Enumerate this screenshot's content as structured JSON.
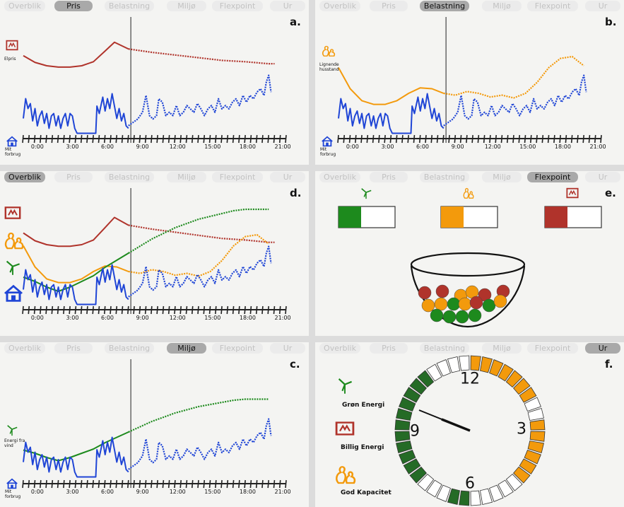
{
  "tabs": [
    "Overblik",
    "Pris",
    "Belastning",
    "Miljø",
    "Flexpoint",
    "Ur"
  ],
  "time_labels": [
    "0:00",
    "3:00",
    "6:00",
    "9:00",
    "12:00",
    "15:00",
    "18:00",
    "21:00"
  ],
  "colors": {
    "consumption": "#1f45d6",
    "price": "#b0332b",
    "load": "#f39a0c",
    "wind": "#1d8a1d",
    "active_tab": "#a9a9a9"
  },
  "panels": {
    "a": {
      "letter": "a.",
      "active_tab": "Pris",
      "price_label": "Elpris",
      "consumption_label": "Mit forbrug",
      "icons": [
        "price-tag-icon",
        "house-icon"
      ]
    },
    "b": {
      "letter": "b.",
      "active_tab": "Belastning",
      "load_label": "Lignende husstand",
      "consumption_label": "Mit forbrug",
      "icons": [
        "family-icon",
        "house-icon"
      ]
    },
    "d": {
      "letter": "d.",
      "active_tab": "Overblik",
      "icons": [
        "price-tag-icon",
        "family-icon",
        "wind-turbine-icon",
        "house-icon"
      ]
    },
    "e": {
      "letter": "e.",
      "active_tab": "Flexpoint",
      "bars": [
        {
          "icon": "wind-turbine-icon",
          "fill": 0.4
        },
        {
          "icon": "family-icon",
          "fill": 0.4
        },
        {
          "icon": "price-tag-icon",
          "fill": 0.4
        }
      ],
      "bowl_balls": {
        "red": 5,
        "orange": 6,
        "green": 5
      }
    },
    "c": {
      "letter": "c.",
      "active_tab": "Miljø",
      "wind_label": "Energi fra vind",
      "consumption_label": "Mit forbrug",
      "icons": [
        "wind-turbine-icon",
        "house-icon"
      ]
    },
    "f": {
      "letter": "f.",
      "active_tab": "Ur",
      "clock_numbers": [
        "12",
        "3",
        "6",
        "9"
      ],
      "legend": [
        {
          "label": "Grøn Energi",
          "icon": "wind-turbine-icon"
        },
        {
          "label": "Billig Energi",
          "icon": "price-tag-icon"
        },
        {
          "label": "God Kapacitet",
          "icon": "family-icon"
        }
      ],
      "segment_colors": [
        "orange",
        "orange",
        "orange",
        "orange",
        "orange",
        "orange",
        "orange",
        "white",
        "white",
        "orange",
        "orange",
        "orange",
        "orange",
        "orange",
        "orange",
        "white",
        "white",
        "white",
        "white",
        "white",
        "green",
        "green",
        "white",
        "white",
        "white",
        "green",
        "green",
        "green",
        "green",
        "green",
        "green",
        "green",
        "green",
        "green",
        "green",
        "green",
        "white",
        "white",
        "white",
        "white"
      ]
    }
  }
}
